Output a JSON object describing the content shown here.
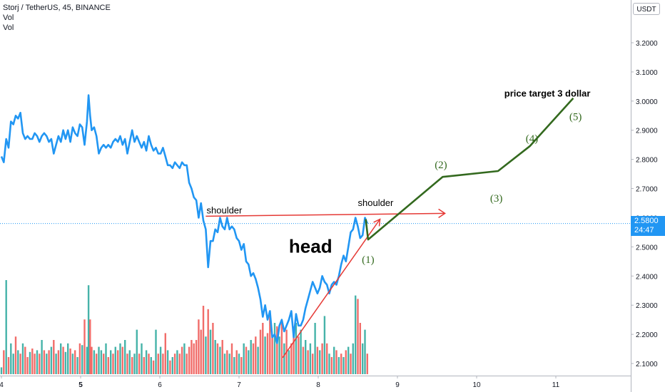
{
  "legend": {
    "symbol": "Storj / TetherUS, 45, BINANCE",
    "indicator_1": "Vol",
    "indicator_2": "Vol"
  },
  "currency_button": "USDT",
  "last_price": {
    "value": "2.5800",
    "countdown": "24:47"
  },
  "colors": {
    "price_line": "#2196f3",
    "volume_up": "#26a69a",
    "volume_down": "#ef5350",
    "annotation_red": "#e53935",
    "projection_green": "#33691e"
  },
  "chart_data": {
    "type": "line",
    "x_ticks": [
      {
        "label": "4",
        "x": 4.0,
        "bold": false
      },
      {
        "label": "5",
        "x": 5.0,
        "bold": true
      },
      {
        "label": "6",
        "x": 6.0,
        "bold": false
      },
      {
        "label": "7",
        "x": 7.0,
        "bold": false
      },
      {
        "label": "8",
        "x": 8.0,
        "bold": false
      },
      {
        "label": "9",
        "x": 9.0,
        "bold": false
      },
      {
        "label": "10",
        "x": 10.0,
        "bold": false
      },
      {
        "label": "11",
        "x": 11.0,
        "bold": false
      }
    ],
    "y_ticks": [
      "3.2000",
      "3.1000",
      "3.0000",
      "2.9000",
      "2.8000",
      "2.7000",
      "2.6000",
      "2.5000",
      "2.4000",
      "2.3000",
      "2.2000",
      "2.1000"
    ],
    "y_range": [
      2.06,
      3.32
    ],
    "x_range": [
      4.0,
      11.95
    ],
    "price": [
      [
        4.0,
        2.81
      ],
      [
        4.03,
        2.79
      ],
      [
        4.06,
        2.87
      ],
      [
        4.09,
        2.84
      ],
      [
        4.12,
        2.93
      ],
      [
        4.15,
        2.92
      ],
      [
        4.18,
        2.95
      ],
      [
        4.21,
        2.94
      ],
      [
        4.24,
        2.96
      ],
      [
        4.27,
        2.89
      ],
      [
        4.3,
        2.87
      ],
      [
        4.33,
        2.88
      ],
      [
        4.36,
        2.87
      ],
      [
        4.39,
        2.87
      ],
      [
        4.42,
        2.89
      ],
      [
        4.45,
        2.88
      ],
      [
        4.48,
        2.86
      ],
      [
        4.51,
        2.88
      ],
      [
        4.54,
        2.89
      ],
      [
        4.57,
        2.88
      ],
      [
        4.6,
        2.86
      ],
      [
        4.63,
        2.87
      ],
      [
        4.66,
        2.82
      ],
      [
        4.69,
        2.85
      ],
      [
        4.72,
        2.88
      ],
      [
        4.75,
        2.86
      ],
      [
        4.78,
        2.9
      ],
      [
        4.81,
        2.87
      ],
      [
        4.84,
        2.9
      ],
      [
        4.87,
        2.86
      ],
      [
        4.9,
        2.91
      ],
      [
        4.93,
        2.89
      ],
      [
        4.96,
        2.88
      ],
      [
        4.99,
        2.92
      ],
      [
        5.02,
        2.91
      ],
      [
        5.05,
        2.85
      ],
      [
        5.08,
        2.93
      ],
      [
        5.1,
        3.02
      ],
      [
        5.12,
        2.95
      ],
      [
        5.14,
        2.9
      ],
      [
        5.17,
        2.91
      ],
      [
        5.2,
        2.88
      ],
      [
        5.23,
        2.82
      ],
      [
        5.26,
        2.84
      ],
      [
        5.29,
        2.85
      ],
      [
        5.32,
        2.84
      ],
      [
        5.35,
        2.85
      ],
      [
        5.38,
        2.84
      ],
      [
        5.41,
        2.86
      ],
      [
        5.44,
        2.87
      ],
      [
        5.47,
        2.86
      ],
      [
        5.5,
        2.88
      ],
      [
        5.53,
        2.85
      ],
      [
        5.56,
        2.87
      ],
      [
        5.59,
        2.82
      ],
      [
        5.62,
        2.86
      ],
      [
        5.65,
        2.9
      ],
      [
        5.68,
        2.86
      ],
      [
        5.71,
        2.88
      ],
      [
        5.74,
        2.86
      ],
      [
        5.77,
        2.84
      ],
      [
        5.8,
        2.86
      ],
      [
        5.83,
        2.83
      ],
      [
        5.86,
        2.88
      ],
      [
        5.89,
        2.85
      ],
      [
        5.92,
        2.83
      ],
      [
        5.95,
        2.84
      ],
      [
        5.98,
        2.82
      ],
      [
        6.01,
        2.82
      ],
      [
        6.04,
        2.84
      ],
      [
        6.07,
        2.81
      ],
      [
        6.1,
        2.78
      ],
      [
        6.13,
        2.78
      ],
      [
        6.16,
        2.77
      ],
      [
        6.19,
        2.79
      ],
      [
        6.22,
        2.78
      ],
      [
        6.25,
        2.77
      ],
      [
        6.28,
        2.79
      ],
      [
        6.31,
        2.78
      ],
      [
        6.34,
        2.78
      ],
      [
        6.37,
        2.72
      ],
      [
        6.4,
        2.7
      ],
      [
        6.43,
        2.67
      ],
      [
        6.46,
        2.66
      ],
      [
        6.49,
        2.6
      ],
      [
        6.52,
        2.65
      ],
      [
        6.55,
        2.59
      ],
      [
        6.58,
        2.56
      ],
      [
        6.61,
        2.43
      ],
      [
        6.64,
        2.52
      ],
      [
        6.67,
        2.52
      ],
      [
        6.7,
        2.56
      ],
      [
        6.73,
        2.55
      ],
      [
        6.76,
        2.6
      ],
      [
        6.79,
        2.57
      ],
      [
        6.82,
        2.56
      ],
      [
        6.85,
        2.6
      ],
      [
        6.88,
        2.56
      ],
      [
        6.91,
        2.57
      ],
      [
        6.94,
        2.56
      ],
      [
        6.97,
        2.53
      ],
      [
        7.0,
        2.52
      ],
      [
        7.03,
        2.49
      ],
      [
        7.06,
        2.51
      ],
      [
        7.09,
        2.45
      ],
      [
        7.12,
        2.44
      ],
      [
        7.15,
        2.4
      ],
      [
        7.18,
        2.41
      ],
      [
        7.21,
        2.39
      ],
      [
        7.24,
        2.36
      ],
      [
        7.27,
        2.32
      ],
      [
        7.3,
        2.26
      ],
      [
        7.33,
        2.3
      ],
      [
        7.36,
        2.25
      ],
      [
        7.39,
        2.28
      ],
      [
        7.42,
        2.19
      ],
      [
        7.45,
        2.2
      ],
      [
        7.48,
        2.17
      ],
      [
        7.51,
        2.23
      ],
      [
        7.54,
        2.25
      ],
      [
        7.57,
        2.21
      ],
      [
        7.6,
        2.23
      ],
      [
        7.63,
        2.25
      ],
      [
        7.66,
        2.28
      ],
      [
        7.69,
        2.19
      ],
      [
        7.72,
        2.27
      ],
      [
        7.75,
        2.23
      ],
      [
        7.78,
        2.23
      ],
      [
        7.81,
        2.25
      ],
      [
        7.84,
        2.29
      ],
      [
        7.87,
        2.32
      ],
      [
        7.9,
        2.35
      ],
      [
        7.93,
        2.38
      ],
      [
        7.96,
        2.36
      ],
      [
        7.99,
        2.34
      ],
      [
        8.02,
        2.36
      ],
      [
        8.05,
        2.4
      ],
      [
        8.08,
        2.38
      ],
      [
        8.11,
        2.37
      ],
      [
        8.14,
        2.34
      ],
      [
        8.17,
        2.37
      ],
      [
        8.2,
        2.38
      ],
      [
        8.23,
        2.37
      ],
      [
        8.26,
        2.4
      ],
      [
        8.29,
        2.44
      ],
      [
        8.32,
        2.47
      ],
      [
        8.35,
        2.45
      ],
      [
        8.38,
        2.5
      ],
      [
        8.41,
        2.55
      ],
      [
        8.44,
        2.56
      ],
      [
        8.47,
        2.6
      ],
      [
        8.5,
        2.57
      ],
      [
        8.53,
        2.53
      ],
      [
        8.56,
        2.54
      ],
      [
        8.59,
        2.6
      ],
      [
        8.62,
        2.58
      ]
    ],
    "volume": [
      [
        4.0,
        0.04,
        "up"
      ],
      [
        4.03,
        0.14,
        "down"
      ],
      [
        4.06,
        0.55,
        "up"
      ],
      [
        4.09,
        0.1,
        "down"
      ],
      [
        4.12,
        0.18,
        "up"
      ],
      [
        4.15,
        0.12,
        "up"
      ],
      [
        4.18,
        0.22,
        "down"
      ],
      [
        4.21,
        0.14,
        "up"
      ],
      [
        4.24,
        0.12,
        "down"
      ],
      [
        4.27,
        0.18,
        "up"
      ],
      [
        4.3,
        0.16,
        "down"
      ],
      [
        4.33,
        0.1,
        "down"
      ],
      [
        4.36,
        0.13,
        "up"
      ],
      [
        4.39,
        0.15,
        "down"
      ],
      [
        4.42,
        0.12,
        "down"
      ],
      [
        4.45,
        0.14,
        "up"
      ],
      [
        4.48,
        0.12,
        "down"
      ],
      [
        4.51,
        0.2,
        "up"
      ],
      [
        4.54,
        0.14,
        "down"
      ],
      [
        4.57,
        0.12,
        "up"
      ],
      [
        4.6,
        0.14,
        "down"
      ],
      [
        4.63,
        0.16,
        "up"
      ],
      [
        4.66,
        0.2,
        "down"
      ],
      [
        4.69,
        0.12,
        "up"
      ],
      [
        4.72,
        0.14,
        "down"
      ],
      [
        4.75,
        0.18,
        "up"
      ],
      [
        4.78,
        0.16,
        "down"
      ],
      [
        4.81,
        0.13,
        "up"
      ],
      [
        4.84,
        0.18,
        "up"
      ],
      [
        4.87,
        0.15,
        "down"
      ],
      [
        4.9,
        0.12,
        "up"
      ],
      [
        4.93,
        0.14,
        "down"
      ],
      [
        4.96,
        0.1,
        "up"
      ],
      [
        4.99,
        0.18,
        "down"
      ],
      [
        5.02,
        0.17,
        "up"
      ],
      [
        5.05,
        0.32,
        "down"
      ],
      [
        5.08,
        0.16,
        "up"
      ],
      [
        5.1,
        0.52,
        "up"
      ],
      [
        5.12,
        0.32,
        "down"
      ],
      [
        5.14,
        0.16,
        "down"
      ],
      [
        5.17,
        0.14,
        "up"
      ],
      [
        5.2,
        0.12,
        "down"
      ],
      [
        5.23,
        0.16,
        "up"
      ],
      [
        5.26,
        0.14,
        "up"
      ],
      [
        5.29,
        0.12,
        "down"
      ],
      [
        5.32,
        0.18,
        "up"
      ],
      [
        5.35,
        0.1,
        "down"
      ],
      [
        5.38,
        0.14,
        "up"
      ],
      [
        5.41,
        0.12,
        "down"
      ],
      [
        5.44,
        0.16,
        "up"
      ],
      [
        5.47,
        0.14,
        "down"
      ],
      [
        5.5,
        0.18,
        "up"
      ],
      [
        5.53,
        0.16,
        "down"
      ],
      [
        5.56,
        0.2,
        "up"
      ],
      [
        5.59,
        0.12,
        "down"
      ],
      [
        5.62,
        0.14,
        "up"
      ],
      [
        5.65,
        0.1,
        "down"
      ],
      [
        5.68,
        0.12,
        "up"
      ],
      [
        5.71,
        0.26,
        "up"
      ],
      [
        5.74,
        0.12,
        "down"
      ],
      [
        5.77,
        0.18,
        "up"
      ],
      [
        5.8,
        0.1,
        "down"
      ],
      [
        5.83,
        0.14,
        "up"
      ],
      [
        5.86,
        0.12,
        "down"
      ],
      [
        5.89,
        0.1,
        "up"
      ],
      [
        5.92,
        0.08,
        "down"
      ],
      [
        5.95,
        0.26,
        "up"
      ],
      [
        5.98,
        0.12,
        "down"
      ],
      [
        6.01,
        0.16,
        "up"
      ],
      [
        6.04,
        0.12,
        "down"
      ],
      [
        6.07,
        0.24,
        "down"
      ],
      [
        6.1,
        0.14,
        "up"
      ],
      [
        6.13,
        0.08,
        "down"
      ],
      [
        6.16,
        0.1,
        "up"
      ],
      [
        6.19,
        0.12,
        "down"
      ],
      [
        6.22,
        0.14,
        "up"
      ],
      [
        6.25,
        0.12,
        "down"
      ],
      [
        6.28,
        0.16,
        "down"
      ],
      [
        6.31,
        0.18,
        "up"
      ],
      [
        6.34,
        0.12,
        "down"
      ],
      [
        6.37,
        0.16,
        "down"
      ],
      [
        6.4,
        0.2,
        "down"
      ],
      [
        6.43,
        0.18,
        "down"
      ],
      [
        6.46,
        0.2,
        "down"
      ],
      [
        6.49,
        0.32,
        "down"
      ],
      [
        6.52,
        0.26,
        "down"
      ],
      [
        6.55,
        0.4,
        "down"
      ],
      [
        6.58,
        0.22,
        "up"
      ],
      [
        6.61,
        0.38,
        "down"
      ],
      [
        6.64,
        0.26,
        "up"
      ],
      [
        6.67,
        0.3,
        "down"
      ],
      [
        6.7,
        0.2,
        "up"
      ],
      [
        6.73,
        0.18,
        "down"
      ],
      [
        6.76,
        0.16,
        "up"
      ],
      [
        6.79,
        0.2,
        "down"
      ],
      [
        6.82,
        0.12,
        "up"
      ],
      [
        6.85,
        0.14,
        "down"
      ],
      [
        6.88,
        0.12,
        "up"
      ],
      [
        6.91,
        0.18,
        "down"
      ],
      [
        6.94,
        0.1,
        "up"
      ],
      [
        6.97,
        0.14,
        "down"
      ],
      [
        7.0,
        0.12,
        "up"
      ],
      [
        7.03,
        0.1,
        "down"
      ],
      [
        7.06,
        0.18,
        "up"
      ],
      [
        7.09,
        0.16,
        "down"
      ],
      [
        7.12,
        0.14,
        "up"
      ],
      [
        7.15,
        0.2,
        "up"
      ],
      [
        7.18,
        0.18,
        "down"
      ],
      [
        7.21,
        0.22,
        "down"
      ],
      [
        7.24,
        0.16,
        "up"
      ],
      [
        7.27,
        0.26,
        "down"
      ],
      [
        7.3,
        0.3,
        "down"
      ],
      [
        7.33,
        0.22,
        "up"
      ],
      [
        7.36,
        0.24,
        "down"
      ],
      [
        7.39,
        0.34,
        "down"
      ],
      [
        7.42,
        0.22,
        "down"
      ],
      [
        7.45,
        0.3,
        "up"
      ],
      [
        7.48,
        0.28,
        "down"
      ],
      [
        7.51,
        0.22,
        "up"
      ],
      [
        7.54,
        0.3,
        "down"
      ],
      [
        7.57,
        0.18,
        "up"
      ],
      [
        7.6,
        0.26,
        "down"
      ],
      [
        7.63,
        0.14,
        "up"
      ],
      [
        7.66,
        0.18,
        "down"
      ],
      [
        7.69,
        0.28,
        "down"
      ],
      [
        7.72,
        0.3,
        "up"
      ],
      [
        7.75,
        0.22,
        "down"
      ],
      [
        7.78,
        0.26,
        "up"
      ],
      [
        7.81,
        0.16,
        "down"
      ],
      [
        7.84,
        0.2,
        "up"
      ],
      [
        7.87,
        0.14,
        "down"
      ],
      [
        7.9,
        0.18,
        "up"
      ],
      [
        7.93,
        0.12,
        "down"
      ],
      [
        7.96,
        0.3,
        "up"
      ],
      [
        7.99,
        0.16,
        "down"
      ],
      [
        8.02,
        0.14,
        "up"
      ],
      [
        8.05,
        0.18,
        "down"
      ],
      [
        8.08,
        0.34,
        "up"
      ],
      [
        8.11,
        0.18,
        "down"
      ],
      [
        8.14,
        0.12,
        "up"
      ],
      [
        8.17,
        0.1,
        "down"
      ],
      [
        8.2,
        0.16,
        "up"
      ],
      [
        8.23,
        0.14,
        "down"
      ],
      [
        8.26,
        0.1,
        "up"
      ],
      [
        8.29,
        0.12,
        "down"
      ],
      [
        8.32,
        0.1,
        "up"
      ],
      [
        8.35,
        0.14,
        "down"
      ],
      [
        8.38,
        0.16,
        "up"
      ],
      [
        8.41,
        0.12,
        "down"
      ],
      [
        8.44,
        0.18,
        "up"
      ],
      [
        8.47,
        0.46,
        "up"
      ],
      [
        8.5,
        0.44,
        "down"
      ],
      [
        8.53,
        0.3,
        "down"
      ],
      [
        8.56,
        0.18,
        "up"
      ],
      [
        8.59,
        0.26,
        "up"
      ],
      [
        8.62,
        0.12,
        "down"
      ]
    ],
    "last_price_line": 2.58,
    "neckline": [
      [
        6.58,
        2.605
      ],
      [
        9.6,
        2.615
      ]
    ],
    "trend_line": [
      [
        7.55,
        2.12
      ],
      [
        8.78,
        2.595
      ]
    ],
    "projection": [
      [
        8.6,
        2.595
      ],
      [
        8.63,
        2.525
      ],
      [
        9.57,
        2.74
      ],
      [
        10.27,
        2.76
      ],
      [
        10.67,
        2.845
      ],
      [
        11.22,
        3.01
      ]
    ],
    "annotations": [
      {
        "text": "shoulder",
        "x": 6.59,
        "y": 2.615,
        "size": 13,
        "bold": false,
        "color": "#000000"
      },
      {
        "text": "shoulder",
        "x": 8.5,
        "y": 2.64,
        "size": 13,
        "bold": false,
        "color": "#000000"
      },
      {
        "text": "head",
        "x": 7.63,
        "y": 2.48,
        "size": 26,
        "bold": true,
        "color": "#000000"
      },
      {
        "text": "price target 3 dollar",
        "x": 10.35,
        "y": 3.015,
        "size": 13,
        "bold": true,
        "color": "#000000"
      },
      {
        "text": "(1)",
        "x": 8.55,
        "y": 2.445,
        "size": 15,
        "bold": false,
        "color": "#33691e"
      },
      {
        "text": "(2)",
        "x": 9.47,
        "y": 2.77,
        "size": 15,
        "bold": false,
        "color": "#33691e"
      },
      {
        "text": "(3)",
        "x": 10.17,
        "y": 2.655,
        "size": 15,
        "bold": false,
        "color": "#33691e"
      },
      {
        "text": "(4)",
        "x": 10.62,
        "y": 2.86,
        "size": 15,
        "bold": false,
        "color": "#33691e"
      },
      {
        "text": "(5)",
        "x": 11.17,
        "y": 2.935,
        "size": 15,
        "bold": false,
        "color": "#33691e"
      }
    ]
  }
}
